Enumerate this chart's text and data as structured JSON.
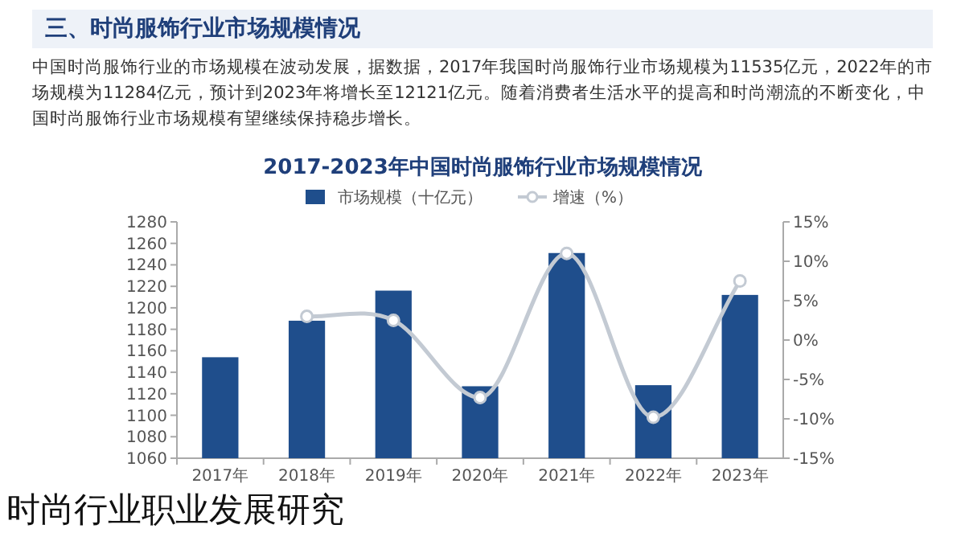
{
  "chart_data": {
    "type": "bar",
    "title": "2017-2023年中国时尚服饰行业市场规模情况",
    "annotations": [
      "三、时尚服饰行业市场规模情况",
      "中国时尚服饰行业的市场规模在波动发展，据数据，2017年我国时尚服饰行业市场规模为11535亿元，2022年的市场规模为11284亿元，预计到2023年将增长至12121亿元。随着消费者生活水平的提高和时尚潮流的不断变化，中国时尚服饰行业市场规模有望继续保持稳步增长。",
      "时尚行业职业发展研究"
    ],
    "categories": [
      "2017年",
      "2018年",
      "2019年",
      "2020年",
      "2021年",
      "2022年",
      "2023年"
    ],
    "series": [
      {
        "name": "市场规模（十亿元）",
        "color": "#1f4e8c",
        "values": [
          1154,
          1188,
          1216,
          1127,
          1251,
          1128,
          1212
        ]
      },
      {
        "name": "增速（%）",
        "type": "line",
        "axis": "y2",
        "color": "#c3cad3",
        "marker": "circle",
        "values": [
          null,
          3.0,
          2.5,
          -7.3,
          11.0,
          -9.8,
          7.5
        ]
      }
    ],
    "ylim": [
      1060,
      1280
    ],
    "yticks": [
      1060,
      1080,
      1100,
      1120,
      1140,
      1160,
      1180,
      1200,
      1220,
      1240,
      1260,
      1280
    ],
    "y2lim": [
      -15,
      15
    ],
    "y2ticks": [
      {
        "value": -15,
        "label": "-15%"
      },
      {
        "value": -10,
        "label": "-10%"
      },
      {
        "value": -5,
        "label": "-5%"
      },
      {
        "value": 0,
        "label": "0%"
      },
      {
        "value": 5,
        "label": "5%"
      },
      {
        "value": 10,
        "label": "10%"
      },
      {
        "value": 15,
        "label": "15%"
      }
    ],
    "legend": "top"
  }
}
